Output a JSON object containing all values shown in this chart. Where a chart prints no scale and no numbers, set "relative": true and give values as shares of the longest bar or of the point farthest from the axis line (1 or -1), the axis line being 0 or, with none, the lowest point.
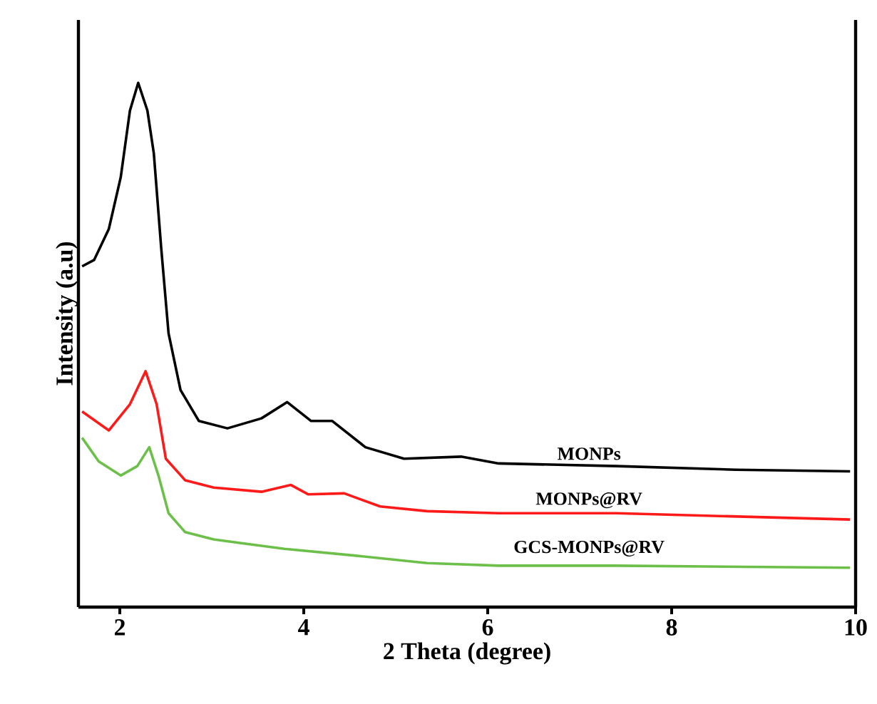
{
  "chart_data": {
    "type": "line",
    "xlabel": "2 Theta (degree)",
    "ylabel": "Intensity (a.u)",
    "relative": true,
    "xlim": [
      1.55,
      10
    ],
    "xticks": [
      2,
      4,
      6,
      8,
      10
    ],
    "legend": false,
    "grid": false,
    "marker": "none",
    "line_style": "solid",
    "series": [
      {
        "name": "MONPs",
        "color": "#000000",
        "x": [
          1.59,
          1.72,
          1.88,
          2.01,
          2.11,
          2.2,
          2.3,
          2.37,
          2.45,
          2.53,
          2.66,
          2.86,
          3.17,
          3.54,
          3.82,
          4.08,
          4.31,
          4.67,
          5.09,
          5.71,
          6.12,
          7.4,
          8.7,
          9.94
        ],
        "values": [
          0.65,
          0.662,
          0.721,
          0.82,
          0.947,
          1.0,
          0.947,
          0.865,
          0.685,
          0.522,
          0.414,
          0.355,
          0.341,
          0.36,
          0.391,
          0.355,
          0.355,
          0.305,
          0.283,
          0.287,
          0.274,
          0.269,
          0.262,
          0.259
        ]
      },
      {
        "name": "MONPs@RV",
        "color": "#ff1a1a",
        "x": [
          1.59,
          1.88,
          2.11,
          2.28,
          2.4,
          2.5,
          2.71,
          3.02,
          3.54,
          3.86,
          4.05,
          4.44,
          4.83,
          5.34,
          6.12,
          7.4,
          9.94
        ],
        "values": [
          0.373,
          0.337,
          0.387,
          0.45,
          0.387,
          0.283,
          0.242,
          0.228,
          0.22,
          0.233,
          0.215,
          0.217,
          0.192,
          0.183,
          0.179,
          0.179,
          0.167
        ]
      },
      {
        "name": "GCS-MONPs@RV",
        "color": "#6cc04a",
        "x": [
          1.59,
          1.77,
          2.01,
          2.19,
          2.32,
          2.42,
          2.53,
          2.71,
          3.02,
          3.79,
          4.57,
          5.34,
          6.12,
          7.4,
          9.94
        ],
        "values": [
          0.323,
          0.278,
          0.251,
          0.269,
          0.305,
          0.251,
          0.179,
          0.143,
          0.129,
          0.111,
          0.098,
          0.084,
          0.079,
          0.079,
          0.075
        ]
      }
    ]
  }
}
